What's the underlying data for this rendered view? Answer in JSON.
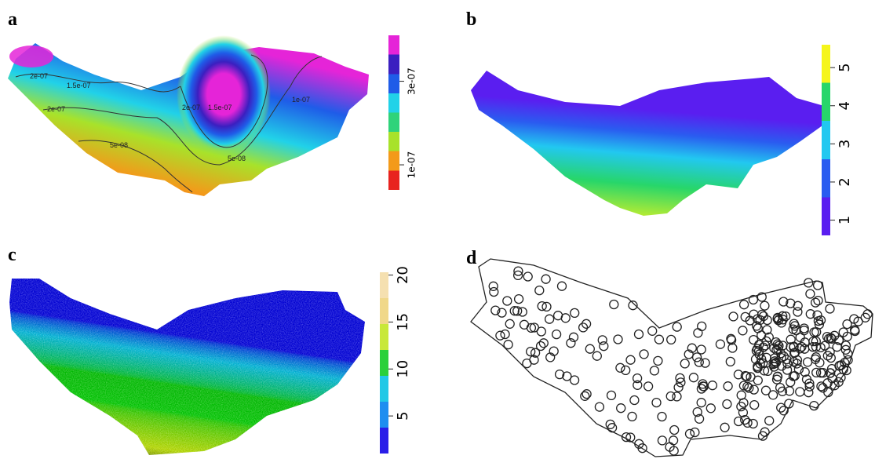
{
  "panels": [
    {
      "label": "a",
      "colorbar": {
        "colors": [
          "#e8231f",
          "#f39a1a",
          "#a8e22a",
          "#2fd37a",
          "#21d2e8",
          "#1f5ce8",
          "#3b1fc0",
          "#e524d8"
        ],
        "clim": [
          4e-08,
          4.1e-07
        ],
        "ticks": [
          {
            "value": 1e-07,
            "label": "1e-07"
          },
          {
            "value": 3e-07,
            "label": "3e-07"
          }
        ]
      },
      "contour_labels": [
        "2e-07",
        "1.5e-07",
        "2e-07",
        "5e-08",
        "2e-07",
        "1.5e-07",
        "5e-08",
        "1e-07"
      ]
    },
    {
      "label": "b",
      "colorbar": {
        "colors": [
          "#5a1ef0",
          "#2a5cf0",
          "#22c8f0",
          "#27d66a",
          "#f5f51a"
        ],
        "clim": [
          0.6,
          5.6
        ],
        "ticks": [
          1,
          2,
          3,
          4,
          5
        ]
      }
    },
    {
      "label": "c",
      "colorbar": {
        "colors": [
          "#2a1ee8",
          "#1f8ef0",
          "#22c8e6",
          "#2ad03a",
          "#c8e83a",
          "#f0d88a",
          "#f5e0b0"
        ],
        "clim": [
          1,
          20.3
        ],
        "ticks": [
          5,
          10,
          15,
          20
        ]
      }
    },
    {
      "label": "d"
    }
  ]
}
